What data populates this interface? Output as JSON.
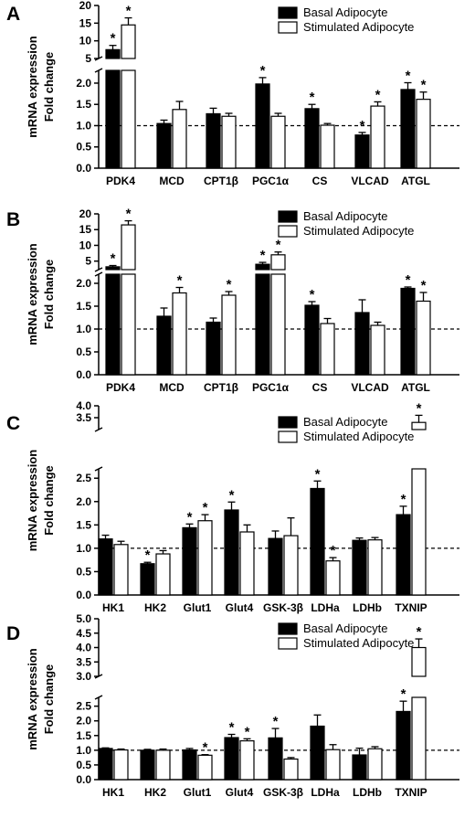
{
  "figure": {
    "y_axis_label_line1": "mRNA expression",
    "y_axis_label_line2": "Fold change",
    "significance_marker": "*",
    "colors": {
      "basal": "#000000",
      "stimulated": "#ffffff",
      "axis": "#000000"
    }
  },
  "chart_data": [
    {
      "panel": "A",
      "type": "bar",
      "categories": [
        "PDK4",
        "MCD",
        "CPT1β",
        "PGC1α",
        "CS",
        "VLCAD",
        "ATGL"
      ],
      "series": [
        {
          "name": "Basal Adipocyte",
          "values": [
            7.5,
            1.05,
            1.28,
            1.98,
            1.4,
            0.78,
            1.85
          ],
          "errors": [
            1.2,
            0.08,
            0.13,
            0.15,
            0.1,
            0.06,
            0.16
          ],
          "significant": [
            true,
            false,
            false,
            true,
            true,
            true,
            true
          ]
        },
        {
          "name": "Stimulated Adipocyte",
          "values": [
            14.5,
            1.38,
            1.22,
            1.22,
            1.01,
            1.46,
            1.62
          ],
          "errors": [
            2.0,
            0.19,
            0.07,
            0.07,
            0.04,
            0.1,
            0.17
          ],
          "significant": [
            true,
            false,
            false,
            false,
            false,
            true,
            true
          ]
        }
      ],
      "y_break": {
        "lower": [
          0.0,
          2.3
        ],
        "upper": [
          5,
          20
        ]
      },
      "yticks_lower": [
        "0.0",
        "0.5",
        "1.0",
        "1.5",
        "2.0"
      ],
      "yticks_upper": [
        "5",
        "10",
        "15",
        "20"
      ],
      "reference_line": 1.0,
      "legend_position": "top-right"
    },
    {
      "panel": "B",
      "type": "bar",
      "categories": [
        "PDK4",
        "MCD",
        "CPT1β",
        "PGC1α",
        "CS",
        "VLCAD",
        "ATGL"
      ],
      "series": [
        {
          "name": "Basal Adipocyte",
          "values": [
            3.2,
            1.28,
            1.15,
            4.0,
            1.52,
            1.36,
            1.89
          ],
          "errors": [
            0.4,
            0.18,
            0.09,
            0.6,
            0.08,
            0.28,
            0.03
          ],
          "significant": [
            true,
            false,
            false,
            true,
            true,
            false,
            true
          ]
        },
        {
          "name": "Stimulated Adipocyte",
          "values": [
            16.5,
            1.79,
            1.74,
            7.0,
            1.12,
            1.08,
            1.61
          ],
          "errors": [
            1.3,
            0.12,
            0.08,
            0.9,
            0.11,
            0.07,
            0.19
          ],
          "significant": [
            true,
            true,
            true,
            true,
            false,
            false,
            true
          ]
        }
      ],
      "y_break": {
        "lower": [
          0.0,
          2.2
        ],
        "upper": [
          2.3,
          20
        ]
      },
      "yticks_lower": [
        "0.0",
        "0.5",
        "1.0",
        "1.5",
        "2.0"
      ],
      "yticks_upper": [
        "5",
        "10",
        "15",
        "20"
      ],
      "reference_line": 1.0,
      "legend_position": "top-right"
    },
    {
      "panel": "C",
      "type": "bar",
      "categories": [
        "HK1",
        "HK2",
        "Glut1",
        "Glut4",
        "GSK-3β",
        "LDHa",
        "LDHb",
        "TXNIP"
      ],
      "series": [
        {
          "name": "Basal Adipocyte",
          "values": [
            1.2,
            0.67,
            1.44,
            1.82,
            1.21,
            2.28,
            1.17,
            1.72
          ],
          "errors": [
            0.08,
            0.03,
            0.08,
            0.17,
            0.16,
            0.16,
            0.05,
            0.18
          ],
          "significant": [
            false,
            true,
            true,
            true,
            false,
            true,
            false,
            true
          ]
        },
        {
          "name": "Stimulated Adipocyte",
          "values": [
            1.08,
            0.88,
            1.59,
            1.35,
            1.27,
            0.73,
            1.18,
            3.3
          ],
          "errors": [
            0.07,
            0.07,
            0.13,
            0.15,
            0.38,
            0.07,
            0.05,
            0.3
          ],
          "significant": [
            false,
            false,
            true,
            false,
            false,
            true,
            false,
            true
          ]
        }
      ],
      "y_break": {
        "lower": [
          0.0,
          2.7
        ],
        "upper": [
          3.0,
          4.0
        ]
      },
      "yticks_lower": [
        "0.0",
        "0.5",
        "1.0",
        "1.5",
        "2.0",
        "2.5"
      ],
      "yticks_upper": [
        "3.5",
        "4.0"
      ],
      "reference_line": 1.0,
      "legend_position": "top-right"
    },
    {
      "panel": "D",
      "type": "bar",
      "categories": [
        "HK1",
        "HK2",
        "Glut1",
        "Glut4",
        "GSK-3β",
        "LDHa",
        "LDHb",
        "TXNIP"
      ],
      "series": [
        {
          "name": "Basal Adipocyte",
          "values": [
            1.06,
            1.0,
            1.01,
            1.43,
            1.42,
            1.82,
            0.84,
            2.32
          ],
          "errors": [
            0.02,
            0.03,
            0.05,
            0.11,
            0.32,
            0.38,
            0.23,
            0.35
          ],
          "significant": [
            false,
            false,
            false,
            true,
            true,
            false,
            false,
            true
          ]
        },
        {
          "name": "Stimulated Adipocyte",
          "values": [
            1.01,
            1.0,
            0.83,
            1.32,
            0.7,
            1.02,
            1.05,
            4.0
          ],
          "errors": [
            0.03,
            0.04,
            0.02,
            0.07,
            0.05,
            0.17,
            0.07,
            0.3
          ],
          "significant": [
            false,
            false,
            true,
            true,
            false,
            false,
            false,
            true
          ]
        }
      ],
      "y_break": {
        "lower": [
          0.0,
          2.8
        ],
        "upper": [
          3.0,
          5.0
        ]
      },
      "yticks_lower": [
        "0.0",
        "0.5",
        "1.0",
        "1.5",
        "2.0",
        "2.5"
      ],
      "yticks_upper": [
        "3.0",
        "3.5",
        "4.0",
        "4.5",
        "5.0"
      ],
      "reference_line": 1.0,
      "legend_position": "top-right"
    }
  ]
}
